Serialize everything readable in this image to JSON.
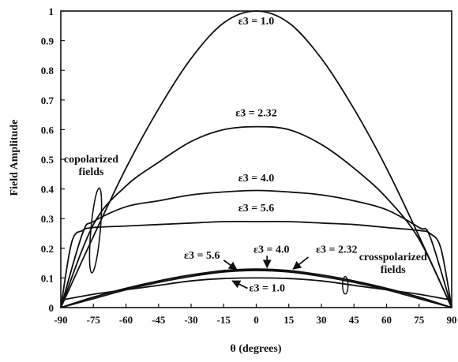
{
  "chart_data": {
    "type": "line",
    "xlabel": "θ (degrees)",
    "ylabel": "Field Amplitude",
    "xlim": [
      -90,
      90
    ],
    "ylim": [
      0,
      1
    ],
    "xticks": [
      -90,
      -75,
      -60,
      -45,
      -30,
      -15,
      0,
      15,
      30,
      45,
      60,
      75,
      90
    ],
    "yticks": [
      0,
      0.1,
      0.2,
      0.3,
      0.4,
      0.5,
      0.6,
      0.7,
      0.8,
      0.9,
      1
    ],
    "grid": false,
    "series": [
      {
        "name": "ε3 = 1.0",
        "group": "copolarized",
        "x": [
          -90,
          -75,
          -60,
          -45,
          -30,
          -15,
          0,
          15,
          30,
          45,
          60,
          75,
          90
        ],
        "y": [
          0,
          0.24,
          0.47,
          0.67,
          0.84,
          0.96,
          1.0,
          0.96,
          0.84,
          0.67,
          0.47,
          0.24,
          0
        ]
      },
      {
        "name": "ε3 = 2.32",
        "group": "copolarized",
        "x": [
          -90,
          -75,
          -60,
          -45,
          -30,
          -15,
          0,
          15,
          30,
          45,
          60,
          75,
          90
        ],
        "y": [
          0,
          0.28,
          0.41,
          0.49,
          0.56,
          0.6,
          0.61,
          0.6,
          0.55,
          0.47,
          0.37,
          0.23,
          0
        ]
      },
      {
        "name": "ε3 = 4.0",
        "group": "copolarized",
        "x": [
          -90,
          -80,
          -75,
          -60,
          -45,
          -30,
          -15,
          0,
          15,
          30,
          45,
          60,
          75,
          80,
          90
        ],
        "y": [
          0,
          0.25,
          0.29,
          0.34,
          0.36,
          0.38,
          0.39,
          0.395,
          0.39,
          0.38,
          0.36,
          0.33,
          0.27,
          0.24,
          0
        ]
      },
      {
        "name": "ε3 = 5.6",
        "group": "copolarized",
        "x": [
          -90,
          -85,
          -80,
          -75,
          -60,
          -45,
          -30,
          -15,
          0,
          15,
          30,
          45,
          60,
          75,
          80,
          85,
          90
        ],
        "y": [
          0,
          0.22,
          0.26,
          0.27,
          0.275,
          0.28,
          0.285,
          0.29,
          0.29,
          0.29,
          0.285,
          0.28,
          0.27,
          0.26,
          0.25,
          0.2,
          0
        ]
      },
      {
        "name": "ε3 = 5.6",
        "group": "crosspolarized",
        "x": [
          -90,
          -75,
          -60,
          -45,
          -30,
          -15,
          0,
          15,
          30,
          45,
          60,
          75,
          90
        ],
        "y": [
          0,
          0.03,
          0.06,
          0.085,
          0.105,
          0.12,
          0.125,
          0.12,
          0.105,
          0.085,
          0.06,
          0.03,
          0
        ]
      },
      {
        "name": "ε3 = 4.0",
        "group": "crosspolarized",
        "x": [
          -90,
          -75,
          -60,
          -45,
          -30,
          -15,
          0,
          15,
          30,
          45,
          60,
          75,
          90
        ],
        "y": [
          0,
          0.035,
          0.065,
          0.09,
          0.11,
          0.122,
          0.127,
          0.122,
          0.11,
          0.09,
          0.065,
          0.035,
          0
        ]
      },
      {
        "name": "ε3 = 2.32",
        "group": "crosspolarized",
        "x": [
          -90,
          -75,
          -60,
          -45,
          -30,
          -15,
          0,
          15,
          30,
          45,
          60,
          75,
          90
        ],
        "y": [
          0,
          0.035,
          0.065,
          0.09,
          0.11,
          0.125,
          0.13,
          0.125,
          0.11,
          0.09,
          0.065,
          0.035,
          0
        ]
      },
      {
        "name": "ε3 = 1.0",
        "group": "crosspolarized",
        "x": [
          -90,
          -75,
          -60,
          -45,
          -30,
          -15,
          0,
          15,
          30,
          45,
          60,
          75,
          90
        ],
        "y": [
          0.025,
          0.045,
          0.06,
          0.075,
          0.09,
          0.098,
          0.1,
          0.098,
          0.09,
          0.075,
          0.06,
          0.045,
          0.025
        ]
      }
    ],
    "annotations": {
      "copolarized": "copolarized fields",
      "crosspolarized": "crosspolarized fields",
      "labels": [
        {
          "id": "co-1.0",
          "text": "ε3 = 1.0",
          "at": [
            0,
            0.955
          ]
        },
        {
          "id": "co-2.32",
          "text": "ε3 = 2.32",
          "at": [
            0,
            0.645
          ]
        },
        {
          "id": "co-4.0",
          "text": "ε3 = 4.0",
          "at": [
            0,
            0.425
          ]
        },
        {
          "id": "co-5.6",
          "text": "ε3 = 5.6",
          "at": [
            0,
            0.325
          ]
        },
        {
          "id": "x-5.6",
          "text": "ε3 = 5.6",
          "at": [
            -25,
            0.165
          ]
        },
        {
          "id": "x-4.0",
          "text": "ε3 = 4.0",
          "at": [
            7,
            0.185
          ]
        },
        {
          "id": "x-2.32",
          "text": "ε3 = 2.32",
          "at": [
            37,
            0.185
          ]
        },
        {
          "id": "x-1.0",
          "text": "ε3 = 1.0",
          "at": [
            5,
            0.055
          ]
        }
      ]
    }
  }
}
